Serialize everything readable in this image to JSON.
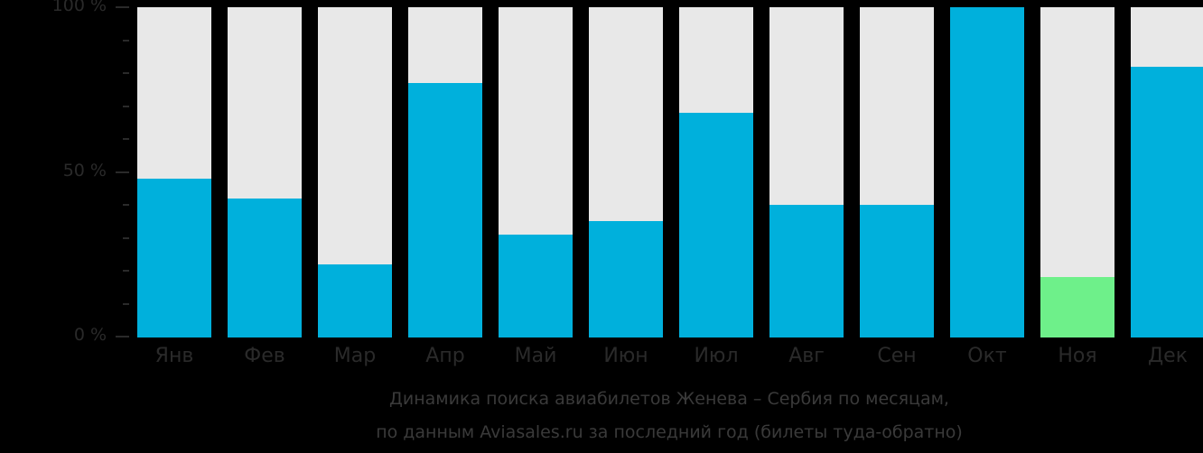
{
  "chart_data": {
    "type": "bar",
    "title": "Динамика поиска авиабилетов Женева – Сербия по месяцам,",
    "subtitle": "по данным Aviasales.ru за последний год (билеты туда-обратно)",
    "xlabel": "",
    "ylabel": "",
    "ylim": [
      0,
      100
    ],
    "yticks": [
      "0 %",
      "50 %",
      "100 %"
    ],
    "categories": [
      "Янв",
      "Фев",
      "Мар",
      "Апр",
      "Май",
      "Июн",
      "Июл",
      "Авг",
      "Сен",
      "Окт",
      "Ноя",
      "Дек"
    ],
    "values": [
      48,
      42,
      22,
      77,
      31,
      35,
      68,
      40,
      40,
      100,
      18,
      82
    ],
    "highlight_index": 10,
    "colors": {
      "bar": "#00b0dc",
      "highlight": "#6ef08a",
      "track": "#e8e8e8",
      "background": "#000000",
      "text": "#2a2a2a"
    },
    "grid": false,
    "legend": "none"
  }
}
